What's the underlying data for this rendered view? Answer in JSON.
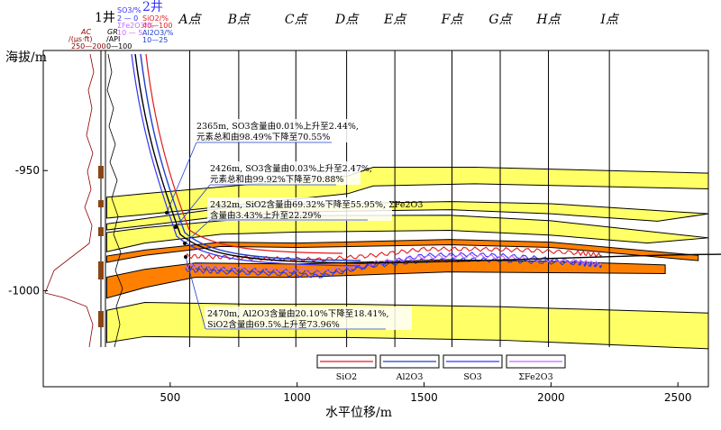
{
  "chart_data": {
    "type": "line",
    "xlabel": "水平位移/m",
    "ylabel": "海拔/m",
    "xlim": [
      0,
      2620
    ],
    "ylim": [
      -1040,
      -900
    ],
    "xticks": [
      500,
      1000,
      1500,
      2000,
      2500
    ],
    "yticks": [
      -950,
      -1000
    ],
    "wells": [
      "1井",
      "2井"
    ],
    "log_headers": {
      "ac": {
        "name": "AC",
        "unit": "/(μs·ft)",
        "range": "250—200"
      },
      "gr": {
        "name": "GR",
        "unit": "/API",
        "range": "0—100"
      },
      "so3": {
        "name": "SO3/%",
        "range": "2 — 0"
      },
      "sio2": {
        "name": "SiO2/%",
        "range": "40—100"
      },
      "fe2o3": {
        "name": "ΣFe2O3/%",
        "range": "10 — 5"
      },
      "al2o3": {
        "name": "Al2O3/%",
        "range": "10—25"
      }
    },
    "points": [
      {
        "label": "A点",
        "x": 577
      },
      {
        "label": "B点",
        "x": 770
      },
      {
        "label": "C点",
        "x": 995
      },
      {
        "label": "D点",
        "x": 1195
      },
      {
        "label": "E点",
        "x": 1385
      },
      {
        "label": "F点",
        "x": 1610
      },
      {
        "label": "G点",
        "x": 1800
      },
      {
        "label": "H点",
        "x": 1990
      },
      {
        "label": "I点",
        "x": 2230
      }
    ],
    "layers": [
      {
        "color": "#ffff66",
        "top": [
          [
            250,
            -961.1
          ],
          [
            400,
            -959.6
          ],
          [
            800,
            -955.9
          ],
          [
            1200,
            -952.2
          ],
          [
            1300,
            -948.6
          ],
          [
            1700,
            -948.6
          ],
          [
            2620,
            -951.1
          ]
        ],
        "bottom": [
          [
            250,
            -969.8
          ],
          [
            400,
            -968.3
          ],
          [
            800,
            -964.0
          ],
          [
            1200,
            -959.6
          ],
          [
            1300,
            -956.4
          ],
          [
            1700,
            -955.5
          ],
          [
            2620,
            -957.6
          ]
        ]
      },
      {
        "color": "#ffff66",
        "top": [
          [
            250,
            -972.2
          ],
          [
            400,
            -970.0
          ],
          [
            700,
            -965.8
          ],
          [
            1000,
            -964.0
          ],
          [
            1600,
            -962.9
          ],
          [
            2000,
            -963.8
          ],
          [
            2620,
            -968.0
          ]
        ],
        "bottom": [
          [
            250,
            -974.7
          ],
          [
            400,
            -972.9
          ],
          [
            700,
            -969.1
          ],
          [
            1000,
            -967.2
          ],
          [
            1600,
            -966.3
          ],
          [
            2000,
            -968.0
          ],
          [
            2420,
            -971.1
          ]
        ]
      },
      {
        "color": "#ffff66",
        "top": [
          [
            250,
            -975.8
          ],
          [
            400,
            -973.8
          ],
          [
            700,
            -970.9
          ],
          [
            1000,
            -968.8
          ],
          [
            1600,
            -968.6
          ],
          [
            2000,
            -970.9
          ],
          [
            2620,
            -978.0
          ]
        ],
        "bottom": [
          [
            250,
            -983.8
          ],
          [
            400,
            -980.2
          ],
          [
            700,
            -976.5
          ],
          [
            1000,
            -975.6
          ],
          [
            1600,
            -974.9
          ],
          [
            2000,
            -976.9
          ],
          [
            2380,
            -980.2
          ]
        ]
      },
      {
        "color": "#ff8000",
        "top": [
          [
            250,
            -985.6
          ],
          [
            400,
            -983.1
          ],
          [
            700,
            -979.8
          ],
          [
            1000,
            -980.2
          ],
          [
            1600,
            -978.7
          ],
          [
            2000,
            -979.8
          ],
          [
            2580,
            -985.3
          ]
        ],
        "bottom": [
          [
            250,
            -988.2
          ],
          [
            400,
            -985.3
          ],
          [
            700,
            -981.6
          ],
          [
            1000,
            -982.0
          ],
          [
            1600,
            -980.9
          ],
          [
            2000,
            -982.0
          ],
          [
            2580,
            -987.5
          ]
        ]
      },
      {
        "color": "#ff8000",
        "top": [
          [
            250,
            -994.4
          ],
          [
            400,
            -991.1
          ],
          [
            600,
            -988.5
          ],
          [
            1000,
            -988.9
          ],
          [
            1600,
            -987.1
          ],
          [
            2000,
            -987.8
          ],
          [
            2450,
            -989.3
          ]
        ],
        "bottom": [
          [
            250,
            -1003.1
          ],
          [
            400,
            -998.7
          ],
          [
            600,
            -994.4
          ],
          [
            1000,
            -994.4
          ],
          [
            1600,
            -992.2
          ],
          [
            2000,
            -992.5
          ],
          [
            2450,
            -992.9
          ]
        ]
      },
      {
        "color": "#ffff66",
        "top": [
          [
            250,
            -1008.2
          ],
          [
            400,
            -1004.9
          ],
          [
            800,
            -1005.6
          ],
          [
            1200,
            -1005.6
          ],
          [
            1800,
            -1006.7
          ],
          [
            2620,
            -1009.3
          ]
        ],
        "bottom": [
          [
            250,
            -1021.6
          ],
          [
            400,
            -1019.1
          ],
          [
            800,
            -1019.5
          ],
          [
            1200,
            -1019.5
          ],
          [
            1800,
            -1020.6
          ],
          [
            2620,
            -1024.2
          ]
        ]
      }
    ],
    "series": [
      {
        "name": "SiO2",
        "color": "#e41a1c",
        "y": [
          [
            560,
            -985.6
          ],
          [
            700,
            -986.0
          ],
          [
            900,
            -986.7
          ],
          [
            1100,
            -987.1
          ],
          [
            1300,
            -985.3
          ],
          [
            1500,
            -982.7
          ],
          [
            1700,
            -982.7
          ],
          [
            1900,
            -983.1
          ],
          [
            2100,
            -984.2
          ],
          [
            2200,
            -985.3
          ]
        ]
      },
      {
        "name": "Al2O3",
        "color": "#1f3ecf",
        "y": [
          [
            560,
            -990.0
          ],
          [
            700,
            -991.1
          ],
          [
            900,
            -991.8
          ],
          [
            1100,
            -992.5
          ],
          [
            1300,
            -989.6
          ],
          [
            1500,
            -987.5
          ],
          [
            1700,
            -987.1
          ],
          [
            1900,
            -987.8
          ],
          [
            2100,
            -988.5
          ],
          [
            2200,
            -989.6
          ]
        ]
      },
      {
        "name": "SO3",
        "color": "#3333ff",
        "y": [
          [
            560,
            -991.4
          ],
          [
            700,
            -992.2
          ],
          [
            900,
            -992.9
          ],
          [
            1100,
            -994.0
          ],
          [
            1300,
            -989.3
          ],
          [
            1500,
            -985.3
          ],
          [
            1700,
            -984.9
          ],
          [
            1900,
            -986.0
          ],
          [
            2100,
            -988.2
          ],
          [
            2200,
            -989.3
          ]
        ]
      },
      {
        "name": "ΣFe2O3",
        "color": "#cc66ff",
        "y": [
          [
            560,
            -989.3
          ],
          [
            700,
            -990.4
          ],
          [
            900,
            -991.1
          ],
          [
            1100,
            -991.8
          ],
          [
            1300,
            -988.5
          ],
          [
            1500,
            -986.0
          ],
          [
            1700,
            -985.6
          ],
          [
            1900,
            -986.7
          ],
          [
            2100,
            -987.8
          ],
          [
            2200,
            -988.9
          ]
        ]
      }
    ],
    "legend": {
      "placement": "bottom-center",
      "entries": [
        "SiO2",
        "Al2O3",
        "SO3",
        "ΣFe2O3"
      ]
    },
    "annotations": [
      {
        "depth": "2365m",
        "lines": [
          "2365m, SO3含量由0.01%上升至2.44%,",
          "元素总和由98.49%下降至70.55%"
        ]
      },
      {
        "depth": "2426m",
        "lines": [
          "2426m, SO3含量由0.03%上升至2.47%,",
          "元素总和由99.92%下降至70.88%"
        ]
      },
      {
        "depth": "2432m",
        "lines": [
          "2432m, SiO2含量由69.32%下降至55.95%, ΣFe2O3",
          "含量由3.43%上升至22.29%"
        ]
      },
      {
        "depth": "2470m",
        "lines": [
          "2470m, Al2O3含量由20.10%下降至18.41%,",
          "SiO2含量由69.5%上升至73.96%"
        ]
      }
    ]
  }
}
